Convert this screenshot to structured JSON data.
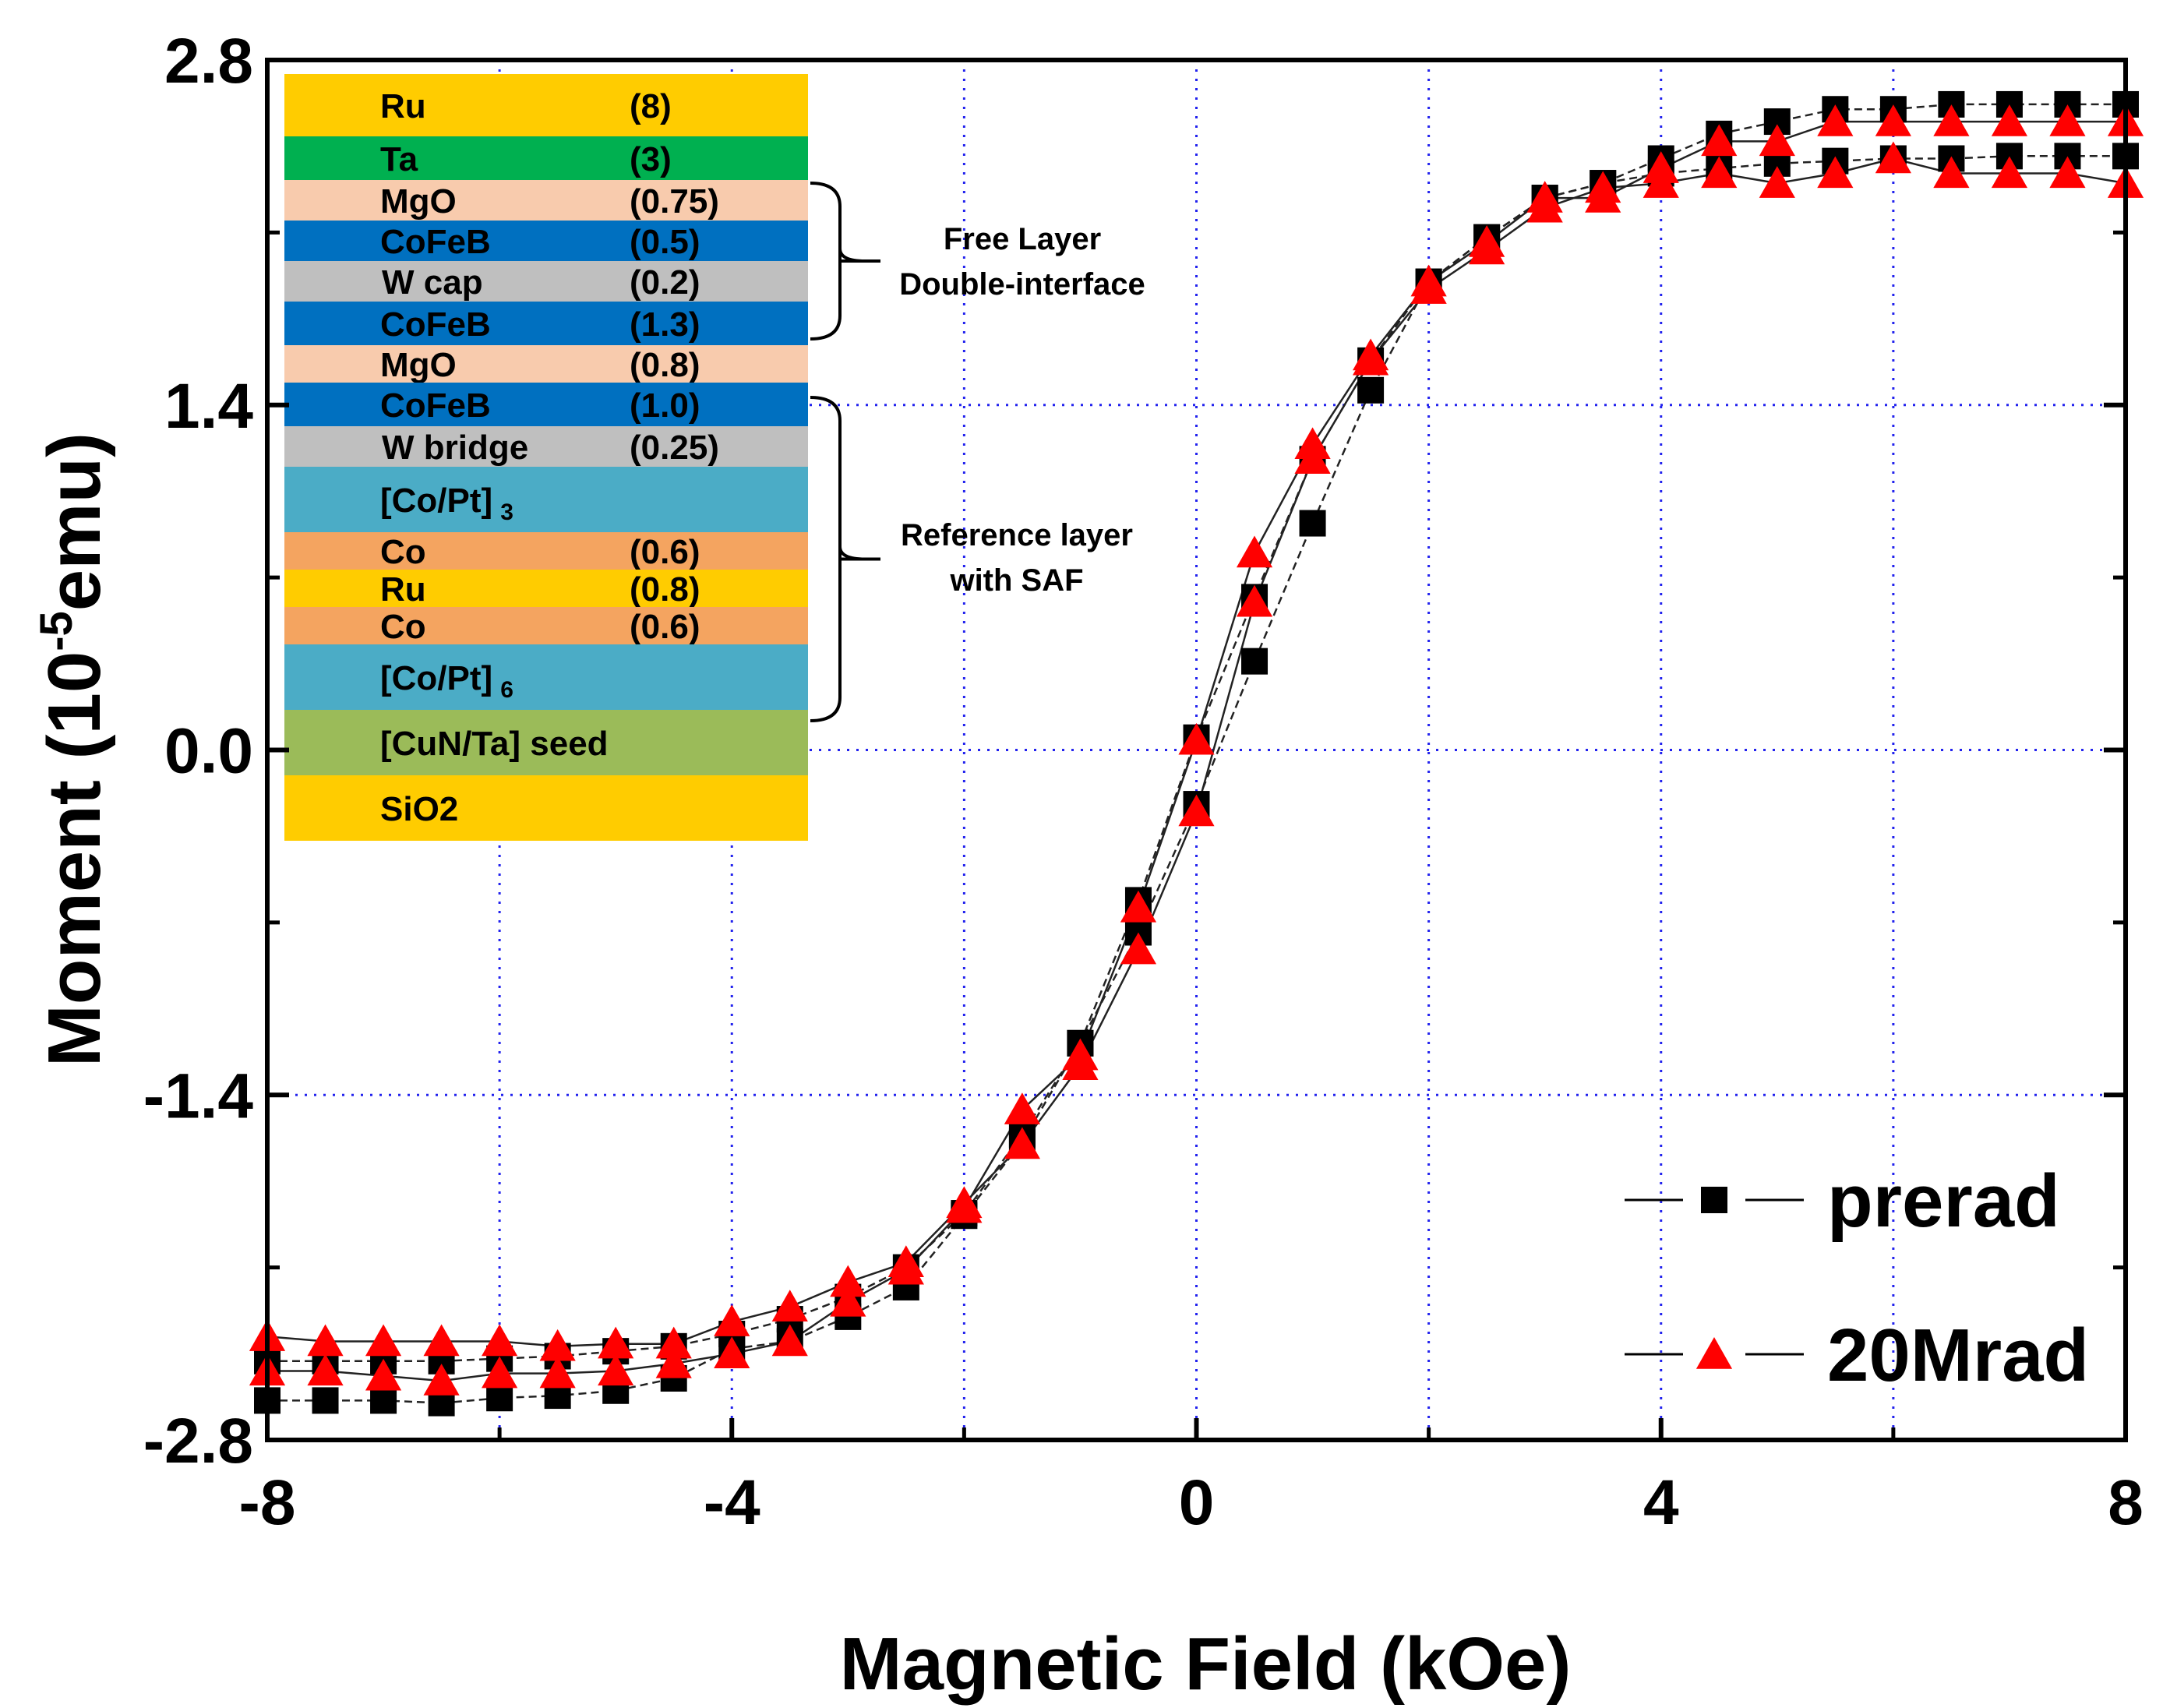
{
  "chart_data": {
    "type": "line",
    "xlabel": "Magnetic Field (kOe)",
    "ylabel_prefix": "Moment (10",
    "ylabel_exponent": "-5",
    "ylabel_suffix": "emu)",
    "xlim": [
      -8,
      8
    ],
    "ylim": [
      -2.8,
      2.8
    ],
    "xticks": [
      -8,
      -4,
      0,
      4,
      8
    ],
    "xtick_labels": [
      "-8",
      "-4",
      "0",
      "4",
      "8"
    ],
    "yticks": [
      -2.8,
      -1.4,
      0.0,
      1.4,
      2.8
    ],
    "ytick_labels": [
      "-2.8",
      "-1.4",
      "0.0",
      "1.4",
      "2.8"
    ],
    "grid": "dotted blue at major ticks",
    "legend_position": "bottom-right",
    "series": [
      {
        "name": "prerad",
        "marker": "square",
        "color": "#000000",
        "branches": [
          {
            "x": [
              -8,
              -7.5,
              -7,
              -6.5,
              -6,
              -5.5,
              -5,
              -4.5,
              -4,
              -3.5,
              -3,
              -2.5,
              -2,
              -1.5,
              -1,
              -0.5,
              0,
              0.5,
              1,
              1.5,
              2,
              2.5,
              3,
              3.5,
              4,
              4.5,
              5,
              5.5,
              6,
              6.5,
              7,
              7.5,
              8
            ],
            "y": [
              -2.48,
              -2.48,
              -2.48,
              -2.48,
              -2.47,
              -2.46,
              -2.44,
              -2.42,
              -2.37,
              -2.31,
              -2.22,
              -2.1,
              -1.88,
              -1.56,
              -1.19,
              -0.74,
              -0.22,
              0.36,
              0.92,
              1.46,
              1.9,
              2.08,
              2.24,
              2.3,
              2.34,
              2.36,
              2.38,
              2.39,
              2.4,
              2.4,
              2.41,
              2.41,
              2.41
            ]
          },
          {
            "x": [
              -8,
              -7.5,
              -7,
              -6.5,
              -6,
              -5.5,
              -5,
              -4.5,
              -4,
              -3.5,
              -3,
              -2.5,
              -2,
              -1.5,
              -1,
              -0.5,
              0,
              0.5,
              1,
              1.5,
              2,
              2.5,
              3,
              3.5,
              4,
              4.5,
              5,
              5.5,
              6,
              6.5,
              7,
              7.5,
              8
            ],
            "y": [
              -2.64,
              -2.64,
              -2.64,
              -2.65,
              -2.63,
              -2.62,
              -2.6,
              -2.55,
              -2.43,
              -2.4,
              -2.3,
              -2.18,
              -1.89,
              -1.59,
              -1.19,
              -0.61,
              0.05,
              0.62,
              1.18,
              1.58,
              1.9,
              2.08,
              2.24,
              2.3,
              2.4,
              2.5,
              2.55,
              2.6,
              2.6,
              2.62,
              2.62,
              2.62,
              2.62
            ]
          }
        ]
      },
      {
        "name": "20Mrad",
        "marker": "triangle",
        "color": "#ff0000",
        "branches": [
          {
            "x": [
              -8,
              -7.5,
              -7,
              -6.5,
              -6,
              -5.5,
              -5,
              -4.5,
              -4,
              -3.5,
              -3,
              -2.5,
              -2,
              -1.5,
              -1,
              -0.5,
              0,
              0.5,
              1,
              1.5,
              2,
              2.5,
              3,
              3.5,
              4,
              4.5,
              5,
              5.5,
              6,
              6.5,
              7,
              7.5,
              8
            ],
            "y": [
              -2.38,
              -2.4,
              -2.4,
              -2.4,
              -2.4,
              -2.42,
              -2.41,
              -2.41,
              -2.32,
              -2.26,
              -2.16,
              -2.08,
              -1.84,
              -1.6,
              -1.28,
              -0.81,
              -0.25,
              0.6,
              1.18,
              1.58,
              1.87,
              2.03,
              2.2,
              2.28,
              2.3,
              2.34,
              2.3,
              2.34,
              2.4,
              2.34,
              2.34,
              2.34,
              2.3
            ]
          },
          {
            "x": [
              -8,
              -7.5,
              -7,
              -6.5,
              -6,
              -5.5,
              -5,
              -4.5,
              -4,
              -3.5,
              -3,
              -2.5,
              -2,
              -1.5,
              -1,
              -0.5,
              0,
              0.5,
              1,
              1.5,
              2,
              2.5,
              3,
              3.5,
              4,
              4.5,
              5,
              5.5,
              6,
              6.5,
              7,
              7.5,
              8
            ],
            "y": [
              -2.52,
              -2.52,
              -2.54,
              -2.56,
              -2.53,
              -2.53,
              -2.52,
              -2.49,
              -2.45,
              -2.4,
              -2.24,
              -2.11,
              -1.86,
              -1.46,
              -1.24,
              -0.64,
              0.04,
              0.8,
              1.24,
              1.6,
              1.9,
              2.06,
              2.24,
              2.24,
              2.36,
              2.47,
              2.47,
              2.55,
              2.55,
              2.55,
              2.55,
              2.55,
              2.55
            ]
          }
        ]
      }
    ]
  },
  "inset": {
    "layers": [
      {
        "name": "Ru",
        "thickness": "(8)",
        "color": "#ffcc00"
      },
      {
        "name": "Ta",
        "thickness": "(3)",
        "color": "#00b050"
      },
      {
        "name": "MgO",
        "thickness": "(0.75)",
        "color": "#f8cbad"
      },
      {
        "name": "CoFeB",
        "thickness": "(0.5)",
        "color": "#0070c0"
      },
      {
        "name": "W cap",
        "thickness": "(0.2)",
        "color": "#bfbfbf"
      },
      {
        "name": "CoFeB",
        "thickness": "(1.3)",
        "color": "#0070c0"
      },
      {
        "name": "MgO",
        "thickness": "(0.8)",
        "color": "#f8cbad"
      },
      {
        "name": "CoFeB",
        "thickness": "(1.0)",
        "color": "#0070c0"
      },
      {
        "name": "W bridge",
        "thickness": "(0.25)",
        "color": "#bfbfbf"
      },
      {
        "name": "[Co/Pt]",
        "subscript": "3",
        "thickness": "",
        "color": "#4bacc6"
      },
      {
        "name": "Co",
        "thickness": "(0.6)",
        "color": "#f4a460"
      },
      {
        "name": "Ru",
        "thickness": "(0.8)",
        "color": "#ffcc00"
      },
      {
        "name": "Co",
        "thickness": "(0.6)",
        "color": "#f4a460"
      },
      {
        "name": "[Co/Pt]",
        "subscript": "6",
        "thickness": "",
        "color": "#4bacc6"
      },
      {
        "name": "[CuN/Ta] seed",
        "thickness": "",
        "color": "#9bbb59"
      },
      {
        "name": "SiO2",
        "thickness": "",
        "color": "#ffcc00"
      }
    ],
    "free_layer_label": [
      "Free Layer",
      "Double-interface"
    ],
    "reference_layer_label": [
      "Reference layer",
      "with SAF"
    ]
  }
}
